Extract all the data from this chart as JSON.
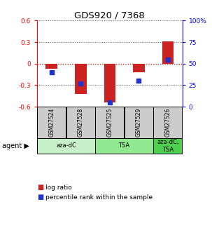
{
  "title": "GDS920 / 7368",
  "samples": [
    "GSM27524",
    "GSM27528",
    "GSM27525",
    "GSM27529",
    "GSM27526"
  ],
  "log_ratios": [
    -0.07,
    -0.42,
    -0.54,
    -0.12,
    0.31
  ],
  "percentile_ranks": [
    40,
    27,
    5,
    30,
    55
  ],
  "agents": [
    {
      "label": "aza-dC",
      "start": 0,
      "end": 2,
      "color": "#c8f0c8"
    },
    {
      "label": "TSA",
      "start": 2,
      "end": 4,
      "color": "#90e890"
    },
    {
      "label": "aza-dC,\nTSA",
      "start": 4,
      "end": 5,
      "color": "#50d050"
    }
  ],
  "ylim": [
    -0.6,
    0.6
  ],
  "y_ticks_left": [
    -0.6,
    -0.3,
    0.0,
    0.3,
    0.6
  ],
  "y_ticks_right": [
    0,
    25,
    50,
    75,
    100
  ],
  "bar_color_red": "#cc2222",
  "bar_color_blue": "#2233cc",
  "dotted_line_color": "#555555",
  "zero_line_color": "#cc0000",
  "sample_box_color": "#cccccc",
  "bar_width": 0.4,
  "title_fontsize": 9.5
}
